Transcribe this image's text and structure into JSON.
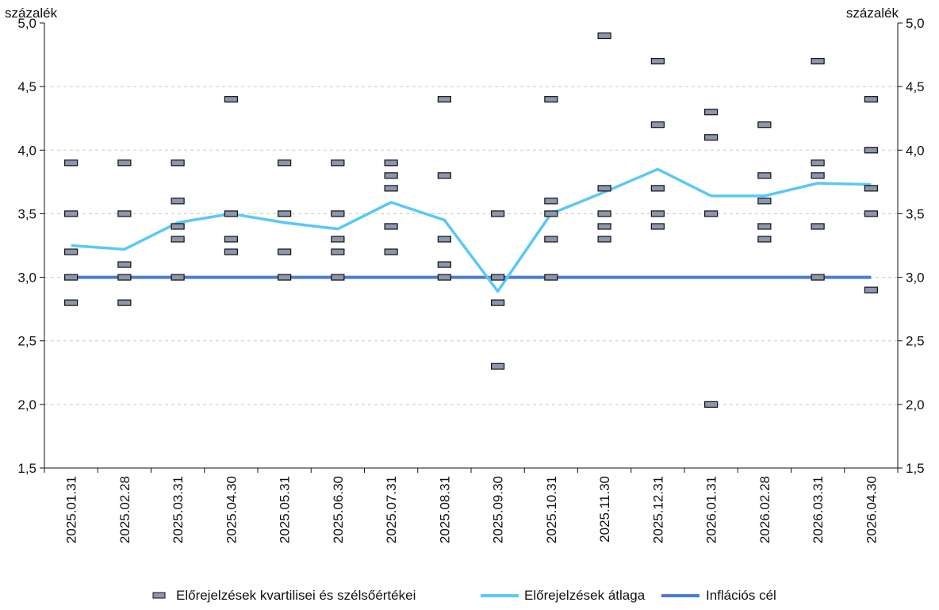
{
  "chart_data": {
    "type": "scatter",
    "unit_left": "százalék",
    "unit_right": "százalék",
    "categories": [
      "2025.01.31",
      "2025.02.28",
      "2025.03.31",
      "2025.04.30",
      "2025.05.31",
      "2025.06.30",
      "2025.07.31",
      "2025.08.31",
      "2025.09.30",
      "2025.10.31",
      "2025.11.30",
      "2025.12.31",
      "2026.01.31",
      "2026.02.28",
      "2026.03.31",
      "2026.04.30"
    ],
    "ylim": [
      1.5,
      5.0
    ],
    "yticks": [
      "5,0",
      "4,5",
      "4,0",
      "3,5",
      "3,0",
      "2,5",
      "2,0",
      "1,5"
    ],
    "ytick_values": [
      5.0,
      4.5,
      4.0,
      3.5,
      3.0,
      2.5,
      2.0,
      1.5
    ],
    "grid": true,
    "legend_position": "bottom",
    "series": [
      {
        "name": "Előrejelzések kvartilisei és szélsőértékei",
        "type": "markers",
        "color": "#8c96ad",
        "values": [
          [
            3.9,
            3.5,
            3.2,
            3.0,
            2.8
          ],
          [
            3.9,
            3.5,
            3.1,
            3.0,
            2.8
          ],
          [
            3.9,
            3.6,
            3.4,
            3.3,
            3.0
          ],
          [
            4.4,
            3.5,
            3.3,
            3.2
          ],
          [
            3.9,
            3.5,
            3.2,
            3.0
          ],
          [
            3.9,
            3.5,
            3.3,
            3.2,
            3.0
          ],
          [
            3.9,
            3.8,
            3.7,
            3.4,
            3.2
          ],
          [
            4.4,
            3.8,
            3.3,
            3.1,
            3.0
          ],
          [
            3.5,
            3.0,
            2.8,
            2.3
          ],
          [
            4.4,
            3.6,
            3.5,
            3.3,
            3.0
          ],
          [
            4.9,
            3.7,
            3.5,
            3.4,
            3.3
          ],
          [
            4.7,
            4.2,
            3.7,
            3.5,
            3.4
          ],
          [
            4.3,
            4.1,
            3.5,
            2.0
          ],
          [
            4.2,
            3.8,
            3.6,
            3.4,
            3.3
          ],
          [
            4.7,
            3.9,
            3.8,
            3.4,
            3.0
          ],
          [
            4.4,
            4.0,
            3.7,
            3.5,
            2.9
          ]
        ]
      },
      {
        "name": "Előrejelzések átlaga",
        "type": "line",
        "color": "#5bc8f5",
        "values": [
          3.25,
          3.22,
          3.43,
          3.5,
          3.43,
          3.38,
          3.59,
          3.45,
          2.89,
          3.5,
          3.67,
          3.85,
          3.64,
          3.64,
          3.74,
          3.73
        ]
      },
      {
        "name": "Inflációs cél",
        "type": "line",
        "color": "#4a7bd6",
        "values": [
          3.0,
          3.0,
          3.0,
          3.0,
          3.0,
          3.0,
          3.0,
          3.0,
          3.0,
          3.0,
          3.0,
          3.0,
          3.0,
          3.0,
          3.0,
          3.0
        ]
      }
    ]
  }
}
